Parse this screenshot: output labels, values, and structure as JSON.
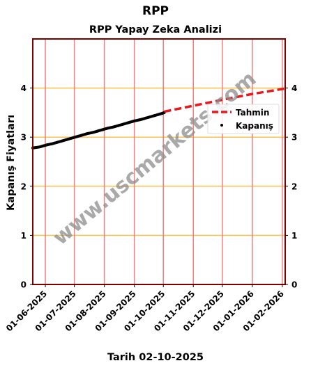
{
  "chart_data": {
    "type": "line",
    "suptitle": "RPP",
    "title": "RPP Yapay Zeka Analizi",
    "xlabel": "Tarih 02-10-2025",
    "ylabel": "Kapanış Fiyatları",
    "x_ticks": [
      "01-06-2025",
      "01-07-2025",
      "01-08-2025",
      "01-09-2025",
      "01-10-2025",
      "01-11-2025",
      "01-12-2025",
      "01-01-2026",
      "01-02-2026"
    ],
    "y_ticks": [
      0,
      1,
      2,
      3,
      4
    ],
    "xlim": [
      "2025-05-19",
      "2026-02-04"
    ],
    "ylim": [
      0,
      5
    ],
    "grid": true,
    "legend_position": "right",
    "series": [
      {
        "name": "Kapanış",
        "style": "scatter",
        "color": "#000000",
        "points": [
          [
            "2025-05-19",
            2.78
          ],
          [
            "2025-05-26",
            2.8
          ],
          [
            "2025-06-02",
            2.84
          ],
          [
            "2025-06-09",
            2.87
          ],
          [
            "2025-06-16",
            2.91
          ],
          [
            "2025-06-23",
            2.95
          ],
          [
            "2025-06-30",
            2.99
          ],
          [
            "2025-07-07",
            3.03
          ],
          [
            "2025-07-14",
            3.07
          ],
          [
            "2025-07-21",
            3.1
          ],
          [
            "2025-07-28",
            3.14
          ],
          [
            "2025-08-04",
            3.18
          ],
          [
            "2025-08-11",
            3.21
          ],
          [
            "2025-08-18",
            3.25
          ],
          [
            "2025-08-25",
            3.29
          ],
          [
            "2025-09-01",
            3.33
          ],
          [
            "2025-09-08",
            3.36
          ],
          [
            "2025-09-15",
            3.4
          ],
          [
            "2025-09-22",
            3.44
          ],
          [
            "2025-09-29",
            3.48
          ],
          [
            "2025-10-02",
            3.5
          ]
        ]
      },
      {
        "name": "Tahmin",
        "style": "dashed-line",
        "color": "#e8191b",
        "points": [
          [
            "2025-10-02",
            3.52
          ],
          [
            "2025-11-01",
            3.64
          ],
          [
            "2025-12-01",
            3.76
          ],
          [
            "2026-01-01",
            3.88
          ],
          [
            "2026-02-04",
            3.99
          ]
        ]
      }
    ],
    "watermark": "www.uscmarkets.com"
  }
}
